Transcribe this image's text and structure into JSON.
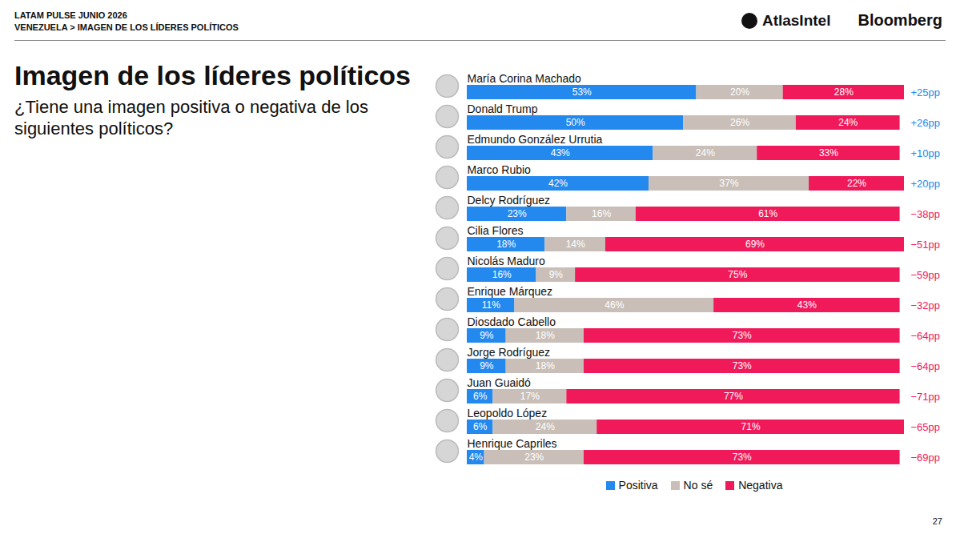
{
  "chart_data": {
    "type": "bar",
    "orientation": "horizontal",
    "stacked": true,
    "data_labels": true,
    "tick_labels": false,
    "legend": "bottom",
    "header": [
      "LATAM PULSE JUNIO 2026",
      "VENEZUELA > IMAGEN DE LOS LÍDERES POLÍTICOS"
    ],
    "logos": [
      "AtlasIntel",
      "Bloomberg"
    ],
    "title": "Imagen de los líderes políticos",
    "subtitle": "¿Tiene una imagen positiva o negativa de los siguientes políticos?",
    "page_number": "27",
    "categories": [
      "María Corina Machado",
      "Donald Trump",
      "Edmundo González Urrutia",
      "Marco Rubio",
      "Delcy Rodríguez",
      "Cilia Flores",
      "Nicolás Maduro",
      "Enrique Márquez",
      "Diosdado Cabello",
      "Jorge Rodríguez",
      "Juan Guaidó",
      "Leopoldo López",
      "Henrique Capriles"
    ],
    "series": [
      {
        "name": "Positiva",
        "color": "#2389ee",
        "values": [
          53,
          50,
          43,
          42,
          23,
          18,
          16,
          11,
          9,
          9,
          6,
          6,
          4
        ],
        "value_labels": [
          "53%",
          "50%",
          "43%",
          "42%",
          "23%",
          "18%",
          "16%",
          "11%",
          "9%",
          "9%",
          "6%",
          "6%",
          "4%"
        ]
      },
      {
        "name": "No sé",
        "color": "#c9bfb8",
        "values": [
          20,
          26,
          24,
          37,
          16,
          14,
          9,
          46,
          18,
          18,
          17,
          24,
          23
        ],
        "value_labels": [
          "20%",
          "26%",
          "24%",
          "37%",
          "16%",
          "14%",
          "9%",
          "46%",
          "18%",
          "18%",
          "17%",
          "24%",
          "23%"
        ]
      },
      {
        "name": "Negativa",
        "color": "#f0195a",
        "values": [
          28,
          24,
          33,
          22,
          61,
          69,
          75,
          43,
          73,
          73,
          77,
          71,
          73
        ],
        "value_labels": [
          "28%",
          "24%",
          "33%",
          "22%",
          "61%",
          "69%",
          "75%",
          "43%",
          "73%",
          "73%",
          "77%",
          "71%",
          "73%"
        ]
      }
    ],
    "difference": [
      25,
      26,
      10,
      20,
      -38,
      -51,
      -59,
      -32,
      -64,
      -64,
      -71,
      -65,
      -69
    ],
    "difference_labels": [
      "+25pp",
      "+26pp",
      "+10pp",
      "+20pp",
      "−38pp",
      "−51pp",
      "−59pp",
      "−32pp",
      "−64pp",
      "−64pp",
      "−71pp",
      "−65pp",
      "−69pp"
    ]
  }
}
